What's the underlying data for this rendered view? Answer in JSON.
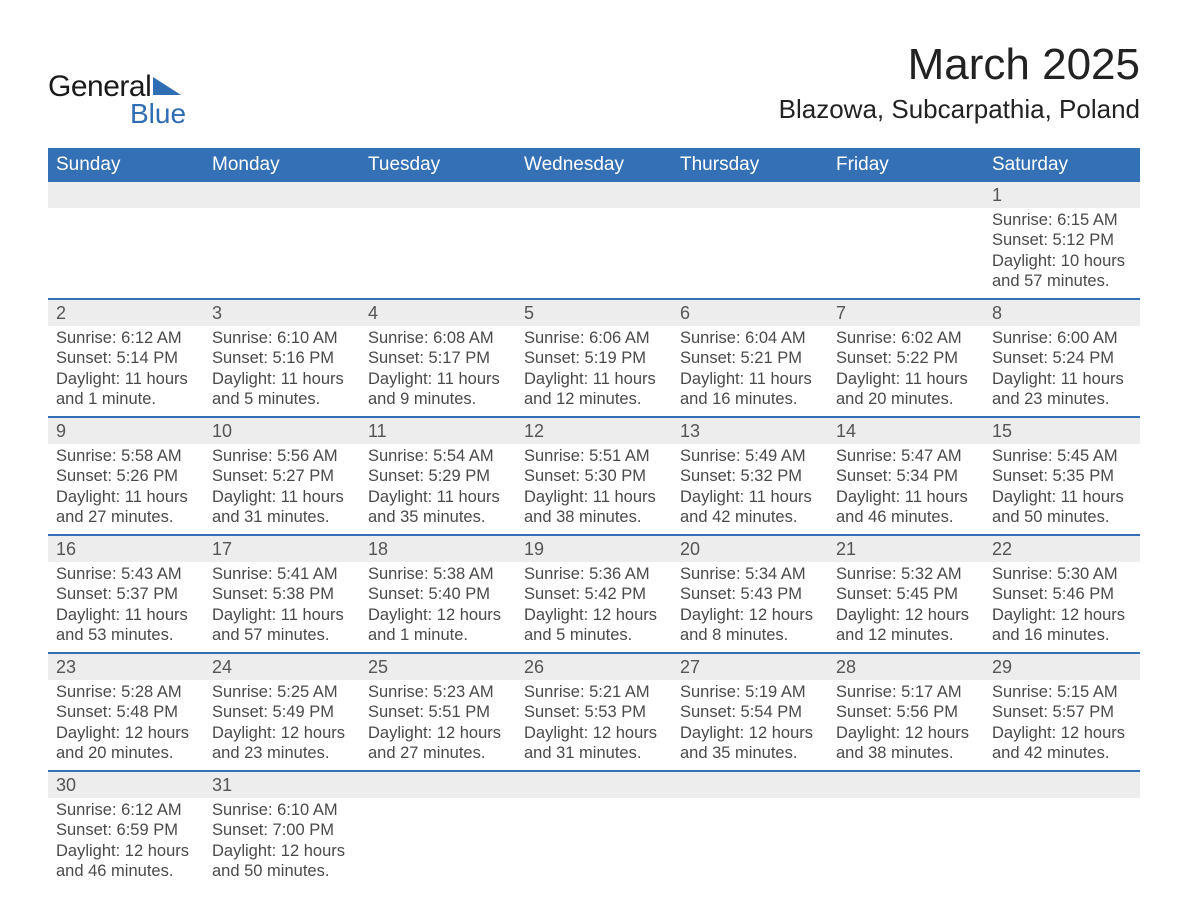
{
  "brand": {
    "word1": "General",
    "word2": "Blue",
    "triangle_color": "#2f6eb5",
    "word1_color": "#1a1a1a",
    "word2_color": "#2f6eb5"
  },
  "title": {
    "month": "March 2025",
    "location": "Blazowa, Subcarpathia, Poland"
  },
  "colors": {
    "header_bg": "#3470b5",
    "header_text": "#ffffff",
    "daynum_bg": "#ededed",
    "row_divider": "#3470b5",
    "body_text": "#4a4a4a",
    "page_bg": "#ffffff"
  },
  "typography": {
    "month_fontsize": 44,
    "location_fontsize": 26,
    "dayheader_fontsize": 19,
    "daynum_fontsize": 18,
    "daydata_fontsize": 16.5,
    "font_family": "Arial"
  },
  "day_headers": [
    "Sunday",
    "Monday",
    "Tuesday",
    "Wednesday",
    "Thursday",
    "Friday",
    "Saturday"
  ],
  "weeks": [
    [
      null,
      null,
      null,
      null,
      null,
      null,
      {
        "n": "1",
        "sunrise": "Sunrise: 6:15 AM",
        "sunset": "Sunset: 5:12 PM",
        "d1": "Daylight: 10 hours",
        "d2": "and 57 minutes."
      }
    ],
    [
      {
        "n": "2",
        "sunrise": "Sunrise: 6:12 AM",
        "sunset": "Sunset: 5:14 PM",
        "d1": "Daylight: 11 hours",
        "d2": "and 1 minute."
      },
      {
        "n": "3",
        "sunrise": "Sunrise: 6:10 AM",
        "sunset": "Sunset: 5:16 PM",
        "d1": "Daylight: 11 hours",
        "d2": "and 5 minutes."
      },
      {
        "n": "4",
        "sunrise": "Sunrise: 6:08 AM",
        "sunset": "Sunset: 5:17 PM",
        "d1": "Daylight: 11 hours",
        "d2": "and 9 minutes."
      },
      {
        "n": "5",
        "sunrise": "Sunrise: 6:06 AM",
        "sunset": "Sunset: 5:19 PM",
        "d1": "Daylight: 11 hours",
        "d2": "and 12 minutes."
      },
      {
        "n": "6",
        "sunrise": "Sunrise: 6:04 AM",
        "sunset": "Sunset: 5:21 PM",
        "d1": "Daylight: 11 hours",
        "d2": "and 16 minutes."
      },
      {
        "n": "7",
        "sunrise": "Sunrise: 6:02 AM",
        "sunset": "Sunset: 5:22 PM",
        "d1": "Daylight: 11 hours",
        "d2": "and 20 minutes."
      },
      {
        "n": "8",
        "sunrise": "Sunrise: 6:00 AM",
        "sunset": "Sunset: 5:24 PM",
        "d1": "Daylight: 11 hours",
        "d2": "and 23 minutes."
      }
    ],
    [
      {
        "n": "9",
        "sunrise": "Sunrise: 5:58 AM",
        "sunset": "Sunset: 5:26 PM",
        "d1": "Daylight: 11 hours",
        "d2": "and 27 minutes."
      },
      {
        "n": "10",
        "sunrise": "Sunrise: 5:56 AM",
        "sunset": "Sunset: 5:27 PM",
        "d1": "Daylight: 11 hours",
        "d2": "and 31 minutes."
      },
      {
        "n": "11",
        "sunrise": "Sunrise: 5:54 AM",
        "sunset": "Sunset: 5:29 PM",
        "d1": "Daylight: 11 hours",
        "d2": "and 35 minutes."
      },
      {
        "n": "12",
        "sunrise": "Sunrise: 5:51 AM",
        "sunset": "Sunset: 5:30 PM",
        "d1": "Daylight: 11 hours",
        "d2": "and 38 minutes."
      },
      {
        "n": "13",
        "sunrise": "Sunrise: 5:49 AM",
        "sunset": "Sunset: 5:32 PM",
        "d1": "Daylight: 11 hours",
        "d2": "and 42 minutes."
      },
      {
        "n": "14",
        "sunrise": "Sunrise: 5:47 AM",
        "sunset": "Sunset: 5:34 PM",
        "d1": "Daylight: 11 hours",
        "d2": "and 46 minutes."
      },
      {
        "n": "15",
        "sunrise": "Sunrise: 5:45 AM",
        "sunset": "Sunset: 5:35 PM",
        "d1": "Daylight: 11 hours",
        "d2": "and 50 minutes."
      }
    ],
    [
      {
        "n": "16",
        "sunrise": "Sunrise: 5:43 AM",
        "sunset": "Sunset: 5:37 PM",
        "d1": "Daylight: 11 hours",
        "d2": "and 53 minutes."
      },
      {
        "n": "17",
        "sunrise": "Sunrise: 5:41 AM",
        "sunset": "Sunset: 5:38 PM",
        "d1": "Daylight: 11 hours",
        "d2": "and 57 minutes."
      },
      {
        "n": "18",
        "sunrise": "Sunrise: 5:38 AM",
        "sunset": "Sunset: 5:40 PM",
        "d1": "Daylight: 12 hours",
        "d2": "and 1 minute."
      },
      {
        "n": "19",
        "sunrise": "Sunrise: 5:36 AM",
        "sunset": "Sunset: 5:42 PM",
        "d1": "Daylight: 12 hours",
        "d2": "and 5 minutes."
      },
      {
        "n": "20",
        "sunrise": "Sunrise: 5:34 AM",
        "sunset": "Sunset: 5:43 PM",
        "d1": "Daylight: 12 hours",
        "d2": "and 8 minutes."
      },
      {
        "n": "21",
        "sunrise": "Sunrise: 5:32 AM",
        "sunset": "Sunset: 5:45 PM",
        "d1": "Daylight: 12 hours",
        "d2": "and 12 minutes."
      },
      {
        "n": "22",
        "sunrise": "Sunrise: 5:30 AM",
        "sunset": "Sunset: 5:46 PM",
        "d1": "Daylight: 12 hours",
        "d2": "and 16 minutes."
      }
    ],
    [
      {
        "n": "23",
        "sunrise": "Sunrise: 5:28 AM",
        "sunset": "Sunset: 5:48 PM",
        "d1": "Daylight: 12 hours",
        "d2": "and 20 minutes."
      },
      {
        "n": "24",
        "sunrise": "Sunrise: 5:25 AM",
        "sunset": "Sunset: 5:49 PM",
        "d1": "Daylight: 12 hours",
        "d2": "and 23 minutes."
      },
      {
        "n": "25",
        "sunrise": "Sunrise: 5:23 AM",
        "sunset": "Sunset: 5:51 PM",
        "d1": "Daylight: 12 hours",
        "d2": "and 27 minutes."
      },
      {
        "n": "26",
        "sunrise": "Sunrise: 5:21 AM",
        "sunset": "Sunset: 5:53 PM",
        "d1": "Daylight: 12 hours",
        "d2": "and 31 minutes."
      },
      {
        "n": "27",
        "sunrise": "Sunrise: 5:19 AM",
        "sunset": "Sunset: 5:54 PM",
        "d1": "Daylight: 12 hours",
        "d2": "and 35 minutes."
      },
      {
        "n": "28",
        "sunrise": "Sunrise: 5:17 AM",
        "sunset": "Sunset: 5:56 PM",
        "d1": "Daylight: 12 hours",
        "d2": "and 38 minutes."
      },
      {
        "n": "29",
        "sunrise": "Sunrise: 5:15 AM",
        "sunset": "Sunset: 5:57 PM",
        "d1": "Daylight: 12 hours",
        "d2": "and 42 minutes."
      }
    ],
    [
      {
        "n": "30",
        "sunrise": "Sunrise: 6:12 AM",
        "sunset": "Sunset: 6:59 PM",
        "d1": "Daylight: 12 hours",
        "d2": "and 46 minutes."
      },
      {
        "n": "31",
        "sunrise": "Sunrise: 6:10 AM",
        "sunset": "Sunset: 7:00 PM",
        "d1": "Daylight: 12 hours",
        "d2": "and 50 minutes."
      },
      null,
      null,
      null,
      null,
      null
    ]
  ]
}
